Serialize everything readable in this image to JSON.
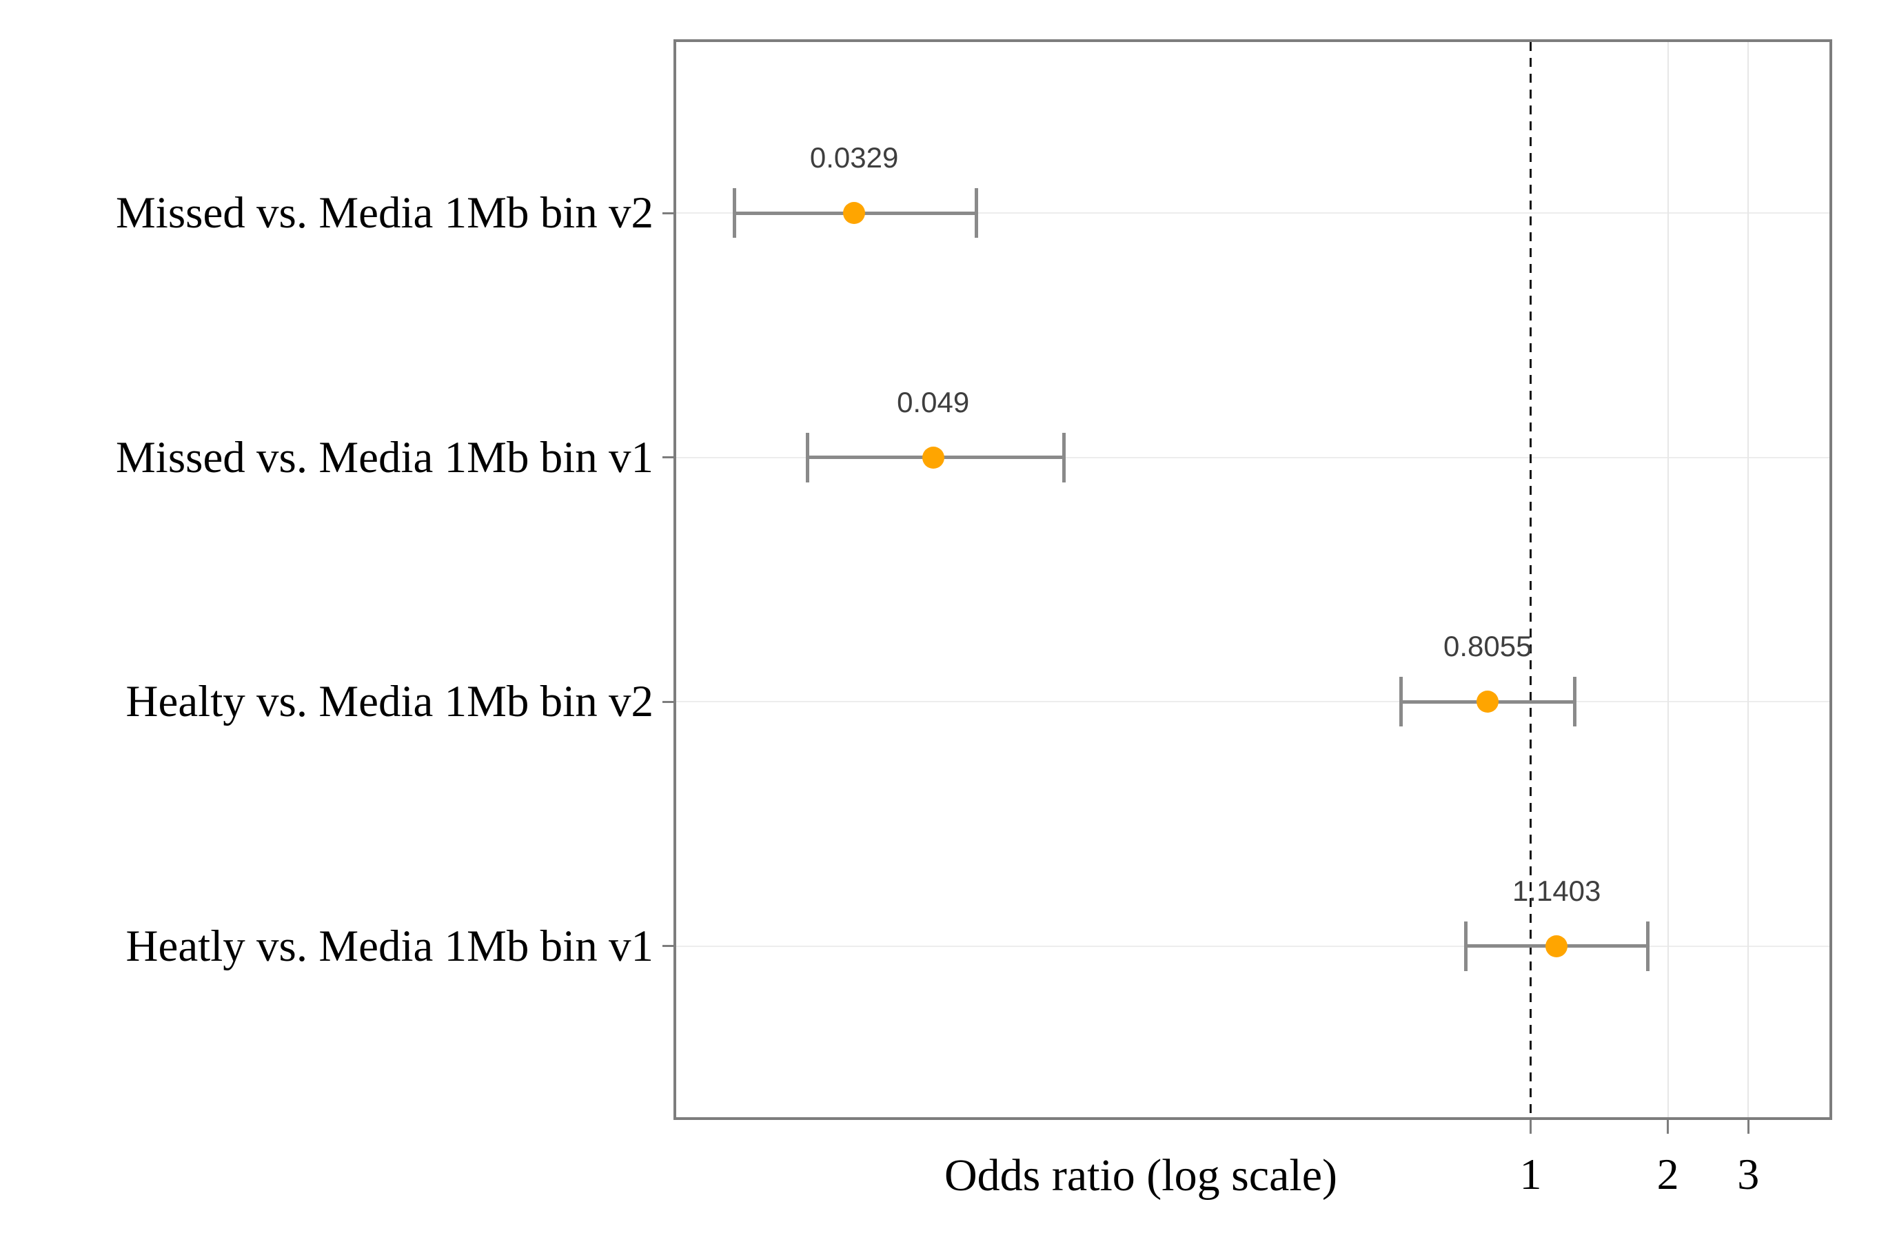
{
  "figure": {
    "background": "#ffffff"
  },
  "chart_data": {
    "type": "scatter",
    "subtype": "forest-plot",
    "orientation": "horizontal",
    "title": "",
    "xlabel": "Odds ratio (log scale)",
    "ylabel": "",
    "x_scale": "log",
    "x_range": [
      0.0134,
      4.52
    ],
    "x_ticks": [
      {
        "value": 1,
        "label": "1"
      },
      {
        "value": 2,
        "label": "2"
      },
      {
        "value": 3,
        "label": "3"
      }
    ],
    "gridline_tick_values": [
      2,
      3
    ],
    "reference_line_x": 1,
    "grid": true,
    "legend_position": "none",
    "categories": [
      "Missed vs. Media 1Mb bin v2",
      "Missed vs. Media 1Mb bin v1",
      "Healty vs. Media 1Mb bin v2",
      "Heatly vs. Media 1Mb bin v1"
    ],
    "series": [
      {
        "name": "odds-ratio",
        "marker": "circle",
        "points": [
          {
            "category": "Missed vs. Media 1Mb bin v2",
            "value": 0.0329,
            "value_label": "0.0329",
            "ci_low": 0.018,
            "ci_high": 0.061
          },
          {
            "category": "Missed vs. Media 1Mb bin v1",
            "value": 0.049,
            "value_label": "0.049",
            "ci_low": 0.026,
            "ci_high": 0.095
          },
          {
            "category": "Healty vs. Media 1Mb bin v2",
            "value": 0.8055,
            "value_label": "0.8055",
            "ci_low": 0.52,
            "ci_high": 1.25
          },
          {
            "category": "Heatly vs. Media 1Mb bin v1",
            "value": 1.1403,
            "value_label": "1.1403",
            "ci_low": 0.72,
            "ci_high": 1.81
          }
        ]
      }
    ],
    "colors": {
      "marker": "#ffa500",
      "error_bar": "#8a8a8a",
      "plot_border": "#7d7d7d",
      "v_gridline": "#e7e7e7",
      "h_gridline": "#ededed",
      "reference_line": "#161616",
      "value_label_text": "#3e3e3e",
      "axis_text": "#000000"
    }
  }
}
